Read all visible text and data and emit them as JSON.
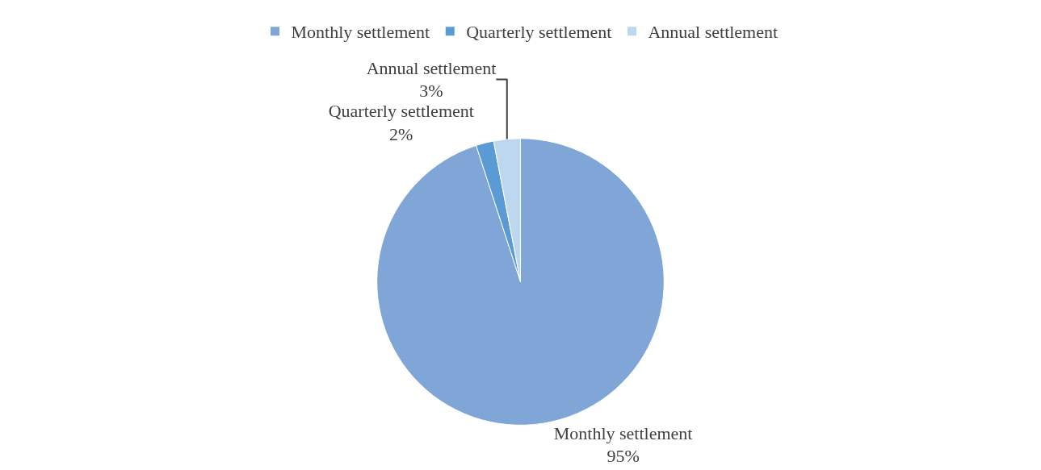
{
  "chart_data": {
    "type": "pie",
    "categories": [
      "Monthly settlement",
      "Quarterly settlement",
      "Annual settlement"
    ],
    "values": [
      95,
      2,
      3
    ],
    "value_labels": [
      "95%",
      "2%",
      "3%"
    ],
    "colors": [
      "#7fa6d6",
      "#5b9bd5",
      "#bdd7ee"
    ],
    "legend": "top"
  }
}
